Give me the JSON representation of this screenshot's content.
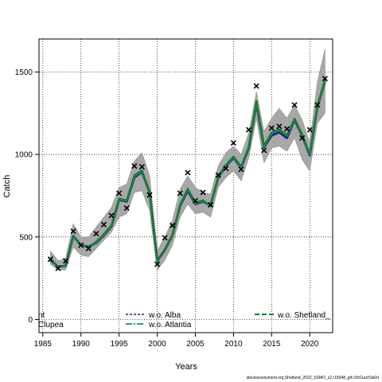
{
  "chart_data": {
    "type": "line",
    "xlabel": "Years",
    "ylabel": "Catch",
    "xlim": [
      1984.5,
      2023
    ],
    "ylim": [
      -80,
      1700
    ],
    "xticks": [
      "1985",
      "1990",
      "1995",
      "2000",
      "2005",
      "2010",
      "2015",
      "2020"
    ],
    "yticks": [
      "0",
      "500",
      "1000",
      "1500"
    ],
    "grid": true,
    "legend_position": "bottom",
    "x": [
      1986,
      1987,
      1988,
      1989,
      1990,
      1991,
      1992,
      1993,
      1994,
      1995,
      1996,
      1997,
      1998,
      1999,
      2000,
      2001,
      2002,
      2003,
      2004,
      2005,
      2006,
      2007,
      2008,
      2009,
      2010,
      2011,
      2012,
      2013,
      2014,
      2015,
      2016,
      2017,
      2018,
      2019,
      2020,
      2021,
      2022
    ],
    "observed": [
      365,
      310,
      355,
      535,
      450,
      430,
      520,
      575,
      630,
      765,
      675,
      930,
      925,
      755,
      335,
      495,
      570,
      765,
      890,
      720,
      770,
      695,
      875,
      915,
      1070,
      910,
      1150,
      1415,
      1025,
      1160,
      1170,
      1155,
      1300,
      1100,
      1150,
      1300,
      1460
    ],
    "band_upper": [
      415,
      355,
      370,
      580,
      500,
      500,
      560,
      620,
      680,
      800,
      820,
      960,
      1010,
      870,
      415,
      500,
      600,
      790,
      870,
      800,
      770,
      760,
      930,
      1010,
      1050,
      1000,
      1130,
      1380,
      1140,
      1220,
      1280,
      1220,
      1300,
      1210,
      1070,
      1440,
      1640
    ],
    "band_lower": [
      335,
      300,
      300,
      440,
      390,
      380,
      430,
      480,
      530,
      620,
      640,
      770,
      780,
      660,
      300,
      360,
      450,
      620,
      700,
      640,
      650,
      620,
      800,
      860,
      900,
      840,
      980,
      1220,
      950,
      1040,
      1050,
      1020,
      1100,
      970,
      900,
      1190,
      1250
    ],
    "series": [
      {
        "name": "w.o. Alba",
        "color": "#1a2a7a",
        "values": [
          360,
          320,
          325,
          505,
          450,
          440,
          465,
          510,
          565,
          725,
          715,
          860,
          895,
          770,
          355,
          420,
          510,
          690,
          780,
          700,
          715,
          690,
          860,
          930,
          980,
          920,
          1040,
          1310,
          1045,
          1115,
          1135,
          1100,
          1210,
          1115,
          995,
          1290,
          1445
        ]
      },
      {
        "name": "w.o. Atlantia",
        "color": "#2ca070",
        "values": [
          365,
          318,
          322,
          500,
          448,
          435,
          470,
          515,
          570,
          730,
          720,
          870,
          900,
          775,
          350,
          415,
          505,
          695,
          790,
          705,
          720,
          685,
          865,
          935,
          985,
          925,
          1045,
          1320,
          1050,
          1130,
          1150,
          1115,
          1215,
          1120,
          1000,
          1295,
          1450
        ]
      },
      {
        "name": "w.o. Shetland_",
        "color": "#1e7a2e",
        "values": [
          368,
          320,
          325,
          505,
          452,
          438,
          472,
          518,
          572,
          733,
          722,
          875,
          903,
          778,
          352,
          418,
          508,
          698,
          793,
          708,
          723,
          688,
          868,
          938,
          988,
          928,
          1048,
          1325,
          1053,
          1133,
          1153,
          1118,
          1218,
          1123,
          1003,
          1298,
          1455
        ]
      }
    ],
    "legend_entries": [
      "nt",
      "Clupea",
      "w.o. Alba",
      "w.o. Atlantia",
      "w.o. Shetland_"
    ]
  },
  "footnote": "stockassessment.org,Shetland_2022_SSMO_v2,r18348_git:c9c61ac53a0d"
}
